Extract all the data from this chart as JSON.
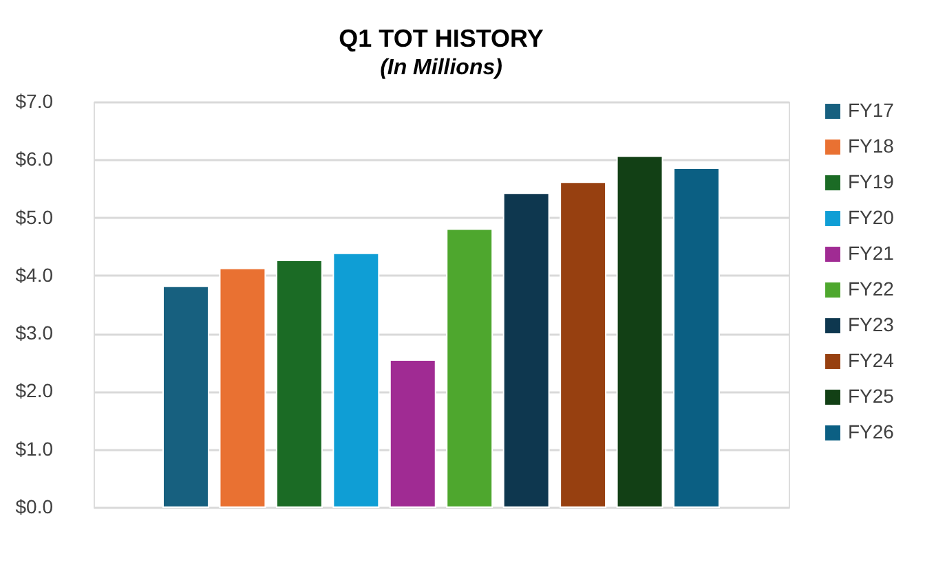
{
  "chart_data": {
    "type": "bar",
    "title": "Q1 TOT HISTORY",
    "subtitle": "(In Millions)",
    "categories": [
      null
    ],
    "series": [
      {
        "name": "FY17",
        "color": "#17607f",
        "values": [
          3.81
        ]
      },
      {
        "name": "FY18",
        "color": "#e97132",
        "values": [
          4.12
        ]
      },
      {
        "name": "FY19",
        "color": "#1b6b25",
        "values": [
          4.26
        ]
      },
      {
        "name": "FY20",
        "color": "#0f9ed5",
        "values": [
          4.38
        ]
      },
      {
        "name": "FY21",
        "color": "#a02b93",
        "values": [
          2.54
        ]
      },
      {
        "name": "FY22",
        "color": "#4ea72e",
        "values": [
          4.8
        ]
      },
      {
        "name": "FY23",
        "color": "#0e374f",
        "values": [
          5.42
        ]
      },
      {
        "name": "FY24",
        "color": "#974010",
        "values": [
          5.61
        ]
      },
      {
        "name": "FY25",
        "color": "#124015",
        "values": [
          6.06
        ]
      },
      {
        "name": "FY26",
        "color": "#0b5f83",
        "values": [
          5.85
        ]
      }
    ],
    "ylim": [
      0,
      7
    ],
    "yticks": [
      {
        "value": 0,
        "label": "$0.0"
      },
      {
        "value": 1,
        "label": "$1.0"
      },
      {
        "value": 2,
        "label": "$2.0"
      },
      {
        "value": 3,
        "label": "$3.0"
      },
      {
        "value": 4,
        "label": "$4.0"
      },
      {
        "value": 5,
        "label": "$5.0"
      },
      {
        "value": 6,
        "label": "$6.0"
      },
      {
        "value": 7,
        "label": "$7.0"
      }
    ],
    "grid": "y",
    "legend": "right"
  }
}
